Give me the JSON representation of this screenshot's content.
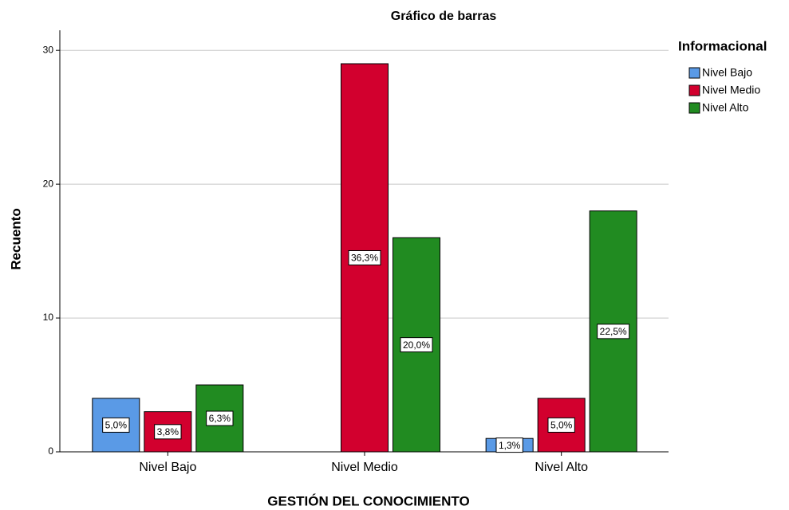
{
  "chart_data": {
    "type": "bar",
    "title": "Gráfico de barras",
    "x_label": "GESTIÓN DEL CONOCIMIENTO",
    "y_label": "Recuento",
    "legend_title": "Informacional",
    "legend_position": "right",
    "grid": true,
    "categories": [
      "Nivel Bajo",
      "Nivel Medio",
      "Nivel Alto"
    ],
    "series": [
      {
        "name": "Nivel Bajo",
        "color": "#5a9ae6",
        "values": [
          4,
          0,
          1
        ],
        "percent_labels": [
          "5,0%",
          null,
          "1,3%"
        ]
      },
      {
        "name": "Nivel Medio",
        "color": "#d2002e",
        "values": [
          3,
          29,
          4
        ],
        "percent_labels": [
          "3,8%",
          "36,3%",
          "5,0%"
        ]
      },
      {
        "name": "Nivel Alto",
        "color": "#218b21",
        "values": [
          5,
          16,
          18
        ],
        "percent_labels": [
          "6,3%",
          "20,0%",
          "22,5%"
        ]
      }
    ],
    "ylim": [
      0,
      31.5
    ],
    "yticks": [
      0,
      10,
      20,
      30
    ]
  }
}
